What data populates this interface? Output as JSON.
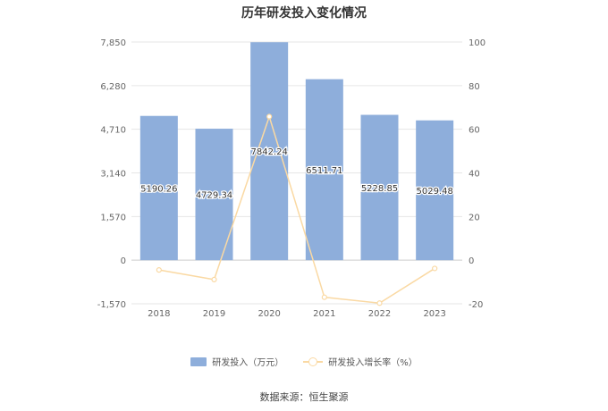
{
  "chart_data": {
    "type": "bar",
    "title": "历年研发投入变化情况",
    "categories": [
      "2018",
      "2019",
      "2020",
      "2021",
      "2022",
      "2023"
    ],
    "series": [
      {
        "name": "研发投入（万元）",
        "type": "bar",
        "axis": "left",
        "color": "#8eaedb",
        "values": [
          5190.26,
          4729.34,
          7842.24,
          6511.71,
          5228.85,
          5029.48
        ],
        "labels": [
          "5190.26",
          "4729.34",
          "7842.24",
          "6511.71",
          "5228.85",
          "5029.48"
        ]
      },
      {
        "name": "研发投入增长率（%）",
        "type": "line",
        "axis": "right",
        "color": "#fad9a3",
        "values": [
          -4.5,
          -8.9,
          65.8,
          -17.0,
          -19.7,
          -3.8
        ]
      }
    ],
    "y_left": {
      "min": -1570,
      "max": 7850,
      "ticks": [
        -1570,
        0,
        1570,
        3140,
        4710,
        6280,
        7850
      ],
      "tick_labels": [
        "-1,570",
        "0",
        "1,570",
        "3,140",
        "4,710",
        "6,280",
        "7,850"
      ]
    },
    "y_right": {
      "min": -20,
      "max": 100,
      "ticks": [
        -20,
        0,
        20,
        40,
        60,
        80,
        100
      ],
      "tick_labels": [
        "-20",
        "0",
        "20",
        "40",
        "60",
        "80",
        "100"
      ]
    },
    "grid": true,
    "legend_position": "bottom"
  },
  "legend": {
    "bar_label": "研发投入（万元）",
    "line_label": "研发投入增长率（%）"
  },
  "source": "数据来源：恒生聚源"
}
